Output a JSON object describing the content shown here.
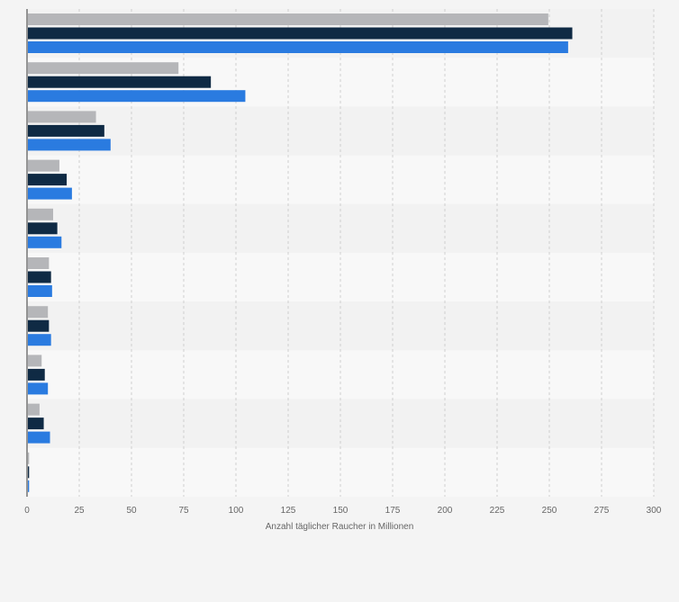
{
  "chart_data": {
    "type": "bar",
    "orientation": "horizontal",
    "xlabel": "Anzahl täglicher Raucher in Millionen",
    "xlim": [
      0,
      300
    ],
    "xticks": [
      0,
      25,
      50,
      75,
      100,
      125,
      150,
      175,
      200,
      225,
      250,
      275,
      300
    ],
    "grid": "vertical-dashed",
    "category_count": 10,
    "series": [
      {
        "color": "#b5b6b9",
        "values": [
          249.5,
          72.5,
          33,
          15.5,
          12.5,
          10.5,
          10,
          7,
          6,
          1
        ]
      },
      {
        "color": "#0f2a44",
        "values": [
          261,
          88,
          37,
          19,
          14.5,
          11.5,
          10.5,
          8.5,
          8,
          1
        ]
      },
      {
        "color": "#2a7be0",
        "values": [
          259,
          104.5,
          40,
          21.5,
          16.5,
          12,
          11.5,
          10,
          11,
          1
        ]
      }
    ]
  }
}
